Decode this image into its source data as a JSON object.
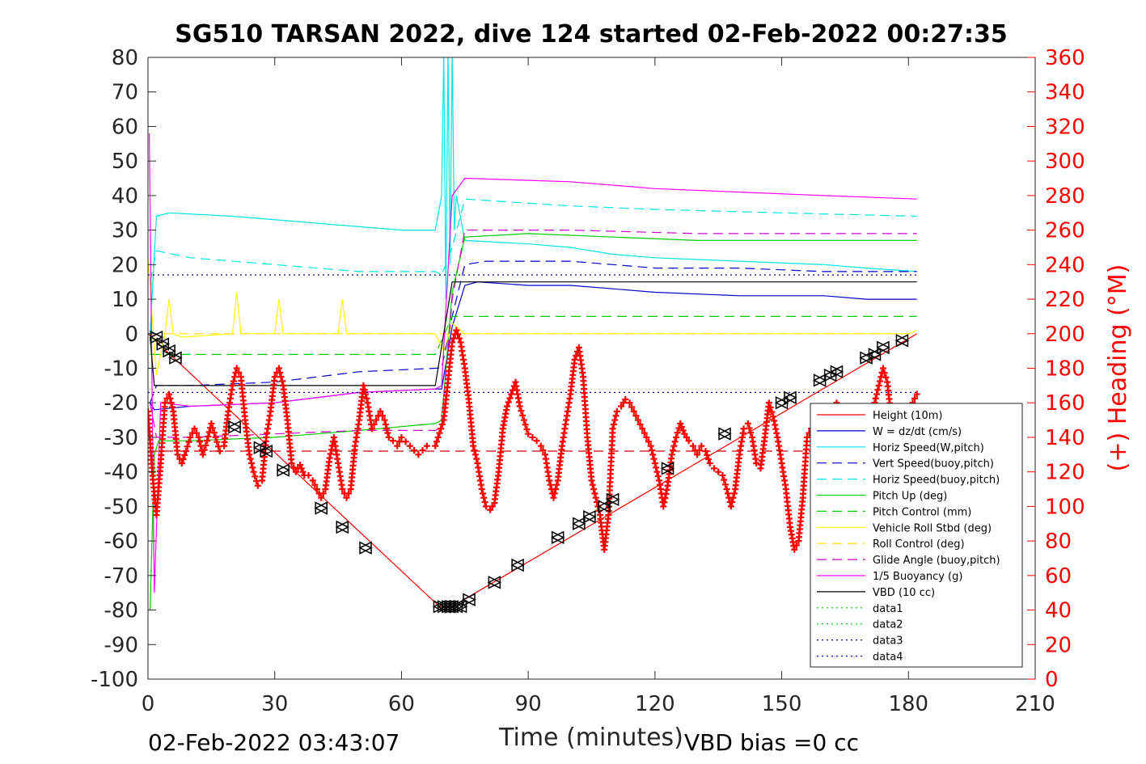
{
  "chart_data": {
    "type": "line",
    "title": "SG510 TARSAN 2022, dive 124 started 02-Feb-2022 00:27:35",
    "xlabel": "Time (minutes)",
    "ylabel_right": "(+) Heading (°M)",
    "footer_left": "02-Feb-2022 03:43:07",
    "footer_right": "VBD bias =0 cc",
    "xlim": [
      0,
      210
    ],
    "ylim": [
      -100,
      80
    ],
    "ylim_right": [
      0,
      360
    ],
    "x_ticks": [
      0,
      30,
      60,
      90,
      120,
      150,
      180,
      210
    ],
    "y_ticks": [
      80,
      70,
      60,
      50,
      40,
      30,
      20,
      10,
      0,
      -10,
      -20,
      -30,
      -40,
      -50,
      -60,
      -70,
      -80,
      -90,
      -100
    ],
    "y_ticks_right": [
      360,
      340,
      320,
      300,
      280,
      260,
      240,
      220,
      200,
      180,
      160,
      140,
      120,
      100,
      80,
      60,
      40,
      20,
      0
    ],
    "grid": false,
    "legend_position": "bottom-right",
    "series": [
      {
        "name": "Height (10m)",
        "color": "#ff0000",
        "style": "solid",
        "x": [
          0,
          69,
          72,
          182
        ],
        "y": [
          0,
          -79,
          -79,
          0
        ]
      },
      {
        "name": "W = dz/dt (cm/s)",
        "color": "#0000cc",
        "style": "solid",
        "x": [
          0.5,
          1.5,
          10,
          30,
          50,
          68,
          69.5,
          72,
          75,
          78,
          90,
          100,
          110,
          120,
          140,
          160,
          170,
          182
        ],
        "y": [
          -20,
          -22,
          -21,
          -20,
          -17,
          -16,
          -16,
          2,
          14,
          15,
          14,
          14,
          13,
          12,
          11,
          11,
          10,
          10
        ]
      },
      {
        "name": "Horiz Speed(W,pitch)",
        "color": "#00e5e5",
        "style": "solid",
        "x": [
          0.5,
          2,
          5,
          20,
          40,
          60,
          68,
          69.5,
          70,
          70.5,
          71,
          71.5,
          72,
          72.5,
          73,
          75,
          90,
          100,
          110,
          120,
          140,
          160,
          170,
          182
        ],
        "y": [
          0,
          34,
          35,
          34,
          32,
          30,
          30,
          40,
          82,
          10,
          82,
          20,
          82,
          30,
          40,
          27,
          26,
          25,
          23,
          22,
          21,
          20,
          19,
          18
        ]
      },
      {
        "name": "Vert Speed(buoy,pitch)",
        "color": "#0000cc",
        "style": "dashed",
        "x": [
          0.5,
          2,
          10,
          30,
          50,
          68,
          69.5,
          72,
          75,
          80,
          100,
          110,
          120,
          140,
          160,
          182
        ],
        "y": [
          -20,
          -15,
          -15,
          -14,
          -11,
          -10,
          -10,
          5,
          20,
          21,
          21,
          20,
          19,
          19,
          18,
          18
        ]
      },
      {
        "name": "Horiz Speed(buoy,pitch)",
        "color": "#00e5e5",
        "style": "dashed",
        "x": [
          0.5,
          2,
          10,
          30,
          50,
          68,
          69.5,
          72,
          75,
          100,
          120,
          150,
          182
        ],
        "y": [
          15,
          24,
          22,
          20,
          18,
          18,
          17,
          25,
          39,
          37,
          36,
          35,
          34
        ]
      },
      {
        "name": "Pitch Up (deg)",
        "color": "#00cc00",
        "style": "solid",
        "x": [
          0.5,
          1.5,
          2.5,
          10,
          30,
          50,
          68,
          69.5,
          72,
          75,
          90,
          110,
          130,
          150,
          182
        ],
        "y": [
          -80,
          -35,
          -31,
          -31,
          -30,
          -28,
          -26,
          -25,
          12,
          28,
          29,
          28,
          27,
          27,
          27
        ]
      },
      {
        "name": "Pitch Control (mm)",
        "color": "#00cc00",
        "style": "dashed",
        "x": [
          0.5,
          2,
          68,
          72,
          182
        ],
        "y": [
          -6,
          -6,
          -6,
          5,
          5
        ]
      },
      {
        "name": "Vehicle Roll Stbd (deg)",
        "color": "#ffff00",
        "style": "solid",
        "x": [
          0,
          1,
          2,
          4,
          5,
          6,
          8,
          20,
          21,
          22,
          30,
          31,
          32,
          40,
          45,
          46,
          47,
          50,
          60,
          68,
          70,
          72,
          75,
          80,
          85,
          90,
          95,
          100,
          105,
          110,
          120,
          130,
          140,
          150,
          160,
          170,
          180,
          182
        ],
        "y": [
          22,
          5,
          -12,
          0,
          10,
          0,
          -1,
          0,
          12,
          0,
          0,
          10,
          0,
          0,
          0,
          10,
          0,
          0,
          0,
          0,
          -5,
          3,
          0,
          0,
          0,
          0,
          0,
          0,
          0,
          0,
          0,
          0,
          0,
          0,
          0,
          0,
          0,
          1
        ]
      },
      {
        "name": "Roll Control (deg)",
        "color": "#ffdd00",
        "style": "dashed",
        "x": [
          0,
          182
        ],
        "y": [
          0,
          0
        ]
      },
      {
        "name": "Glide Angle (buoy,pitch)",
        "color": "#cc00cc",
        "style": "dashed",
        "x": [
          0.5,
          2,
          10,
          30,
          50,
          68,
          69.5,
          72,
          75,
          100,
          130,
          160,
          182
        ],
        "y": [
          -20,
          -30,
          -30,
          -29,
          -28,
          -28,
          -27,
          10,
          30,
          30,
          29,
          29,
          29
        ]
      },
      {
        "name": "1/5 Buoyancy (g)",
        "color": "#ff00ff",
        "style": "solid",
        "x": [
          0.3,
          1.5,
          3,
          10,
          30,
          50,
          68,
          69.5,
          72,
          75,
          100,
          120,
          140,
          160,
          182
        ],
        "y": [
          58,
          -75,
          -20,
          -21,
          -20,
          -17,
          -16,
          -15,
          40,
          45,
          44,
          42,
          41,
          40,
          39
        ]
      },
      {
        "name": "VBD (10 cc)",
        "color": "#000000",
        "style": "solid",
        "x": [
          0.5,
          1.5,
          68,
          72,
          182
        ],
        "y": [
          -1,
          -15,
          -15,
          15,
          15
        ]
      },
      {
        "name": "data1",
        "color": "#00cc00",
        "style": "dotted",
        "x": [],
        "y": []
      },
      {
        "name": "data2",
        "color": "#00cc00",
        "style": "dotted",
        "x": [],
        "y": []
      },
      {
        "name": "data3",
        "color": "#000088",
        "style": "dotted",
        "x": [
          0,
          182
        ],
        "y": [
          17,
          17
        ]
      },
      {
        "name": "data4",
        "color": "#0000cc",
        "style": "dotted",
        "x": [
          0,
          182
        ],
        "y": [
          -17,
          -17
        ]
      }
    ],
    "extra_lines": [
      {
        "color": "#cc0000",
        "style": "dashed",
        "x": [
          0,
          182
        ],
        "y": [
          -34,
          -34
        ]
      }
    ],
    "heading": {
      "axis": "right",
      "color": "#ff0000",
      "marker": "+",
      "x": [
        0,
        1,
        2,
        3,
        4,
        5,
        6,
        7,
        8,
        9,
        10,
        11,
        12,
        13,
        14,
        15,
        16,
        17,
        18,
        19,
        20,
        21,
        22,
        23,
        24,
        25,
        26,
        27,
        28,
        29,
        30,
        31,
        32,
        33,
        34,
        35,
        36,
        37,
        38,
        39,
        40,
        41,
        42,
        43,
        44,
        45,
        46,
        47,
        48,
        49,
        50,
        51,
        52,
        53,
        54,
        55,
        56,
        57,
        58,
        59,
        60,
        62,
        64,
        66,
        68,
        70,
        72,
        73,
        74,
        75,
        76,
        77,
        78,
        79,
        80,
        81,
        82,
        83,
        84,
        85,
        86,
        87,
        88,
        89,
        90,
        91,
        92,
        93,
        94,
        95,
        96,
        97,
        98,
        99,
        100,
        101,
        102,
        103,
        104,
        105,
        106,
        107,
        108,
        109,
        110,
        111,
        112,
        113,
        114,
        115,
        116,
        117,
        118,
        119,
        120,
        121,
        122,
        123,
        124,
        125,
        126,
        127,
        128,
        129,
        130,
        131,
        132,
        133,
        134,
        135,
        136,
        137,
        138,
        139,
        140,
        141,
        142,
        143,
        144,
        145,
        146,
        147,
        148,
        149,
        150,
        151,
        152,
        153,
        154,
        155,
        156,
        157,
        158,
        159,
        160,
        161,
        162,
        163,
        164,
        165,
        166,
        167,
        168,
        169,
        170,
        171,
        172,
        173,
        174,
        175,
        176,
        177,
        178,
        179,
        180,
        181,
        182
      ],
      "y": [
        155,
        120,
        95,
        125,
        160,
        165,
        155,
        130,
        125,
        132,
        140,
        145,
        140,
        130,
        138,
        148,
        140,
        132,
        135,
        155,
        170,
        180,
        175,
        150,
        130,
        120,
        112,
        115,
        140,
        155,
        175,
        180,
        170,
        150,
        125,
        120,
        124,
        118,
        118,
        115,
        110,
        105,
        110,
        128,
        140,
        125,
        110,
        105,
        110,
        135,
        150,
        170,
        160,
        145,
        150,
        155,
        150,
        140,
        138,
        135,
        140,
        135,
        130,
        135,
        135,
        150,
        195,
        202,
        195,
        180,
        160,
        135,
        125,
        110,
        100,
        98,
        102,
        120,
        145,
        158,
        165,
        172,
        158,
        150,
        142,
        140,
        138,
        135,
        130,
        115,
        105,
        115,
        135,
        150,
        165,
        185,
        192,
        175,
        140,
        115,
        105,
        95,
        75,
        95,
        145,
        155,
        158,
        162,
        160,
        155,
        150,
        145,
        140,
        135,
        125,
        115,
        100,
        112,
        130,
        140,
        148,
        142,
        138,
        135,
        130,
        135,
        132,
        125,
        122,
        120,
        118,
        110,
        100,
        110,
        130,
        145,
        148,
        140,
        125,
        122,
        140,
        160,
        152,
        140,
        125,
        110,
        88,
        75,
        80,
        105,
        140,
        145,
        135,
        128,
        130,
        140,
        155,
        160,
        145,
        130,
        120,
        125,
        135,
        142,
        140,
        150,
        160,
        170,
        180,
        172,
        150,
        140,
        142,
        155,
        158,
        160,
        165
      ]
    },
    "time_markers": {
      "marker": "triangle",
      "color": "#000000",
      "x": [
        2,
        3.5,
        5,
        6.5,
        20.5,
        26.5,
        28,
        32,
        41,
        46,
        51.5,
        69,
        70,
        71,
        72,
        73,
        74,
        76,
        82,
        87.5,
        97,
        102,
        104.5,
        108,
        110,
        123,
        136.5,
        150,
        152,
        159,
        161.5,
        163,
        170,
        172,
        174,
        178.5
      ],
      "y": [
        -1,
        -3,
        -5,
        -7,
        -27,
        -33,
        -34,
        -39.5,
        -50.5,
        -56,
        -62,
        -79,
        -79,
        -79,
        -79,
        -79,
        -79,
        -77,
        -72,
        -67,
        -59,
        -55,
        -53,
        -50,
        -48,
        -39,
        -29,
        -20,
        -18.5,
        -13.5,
        -12,
        -11,
        -7,
        -6,
        -4,
        -2
      ]
    }
  }
}
